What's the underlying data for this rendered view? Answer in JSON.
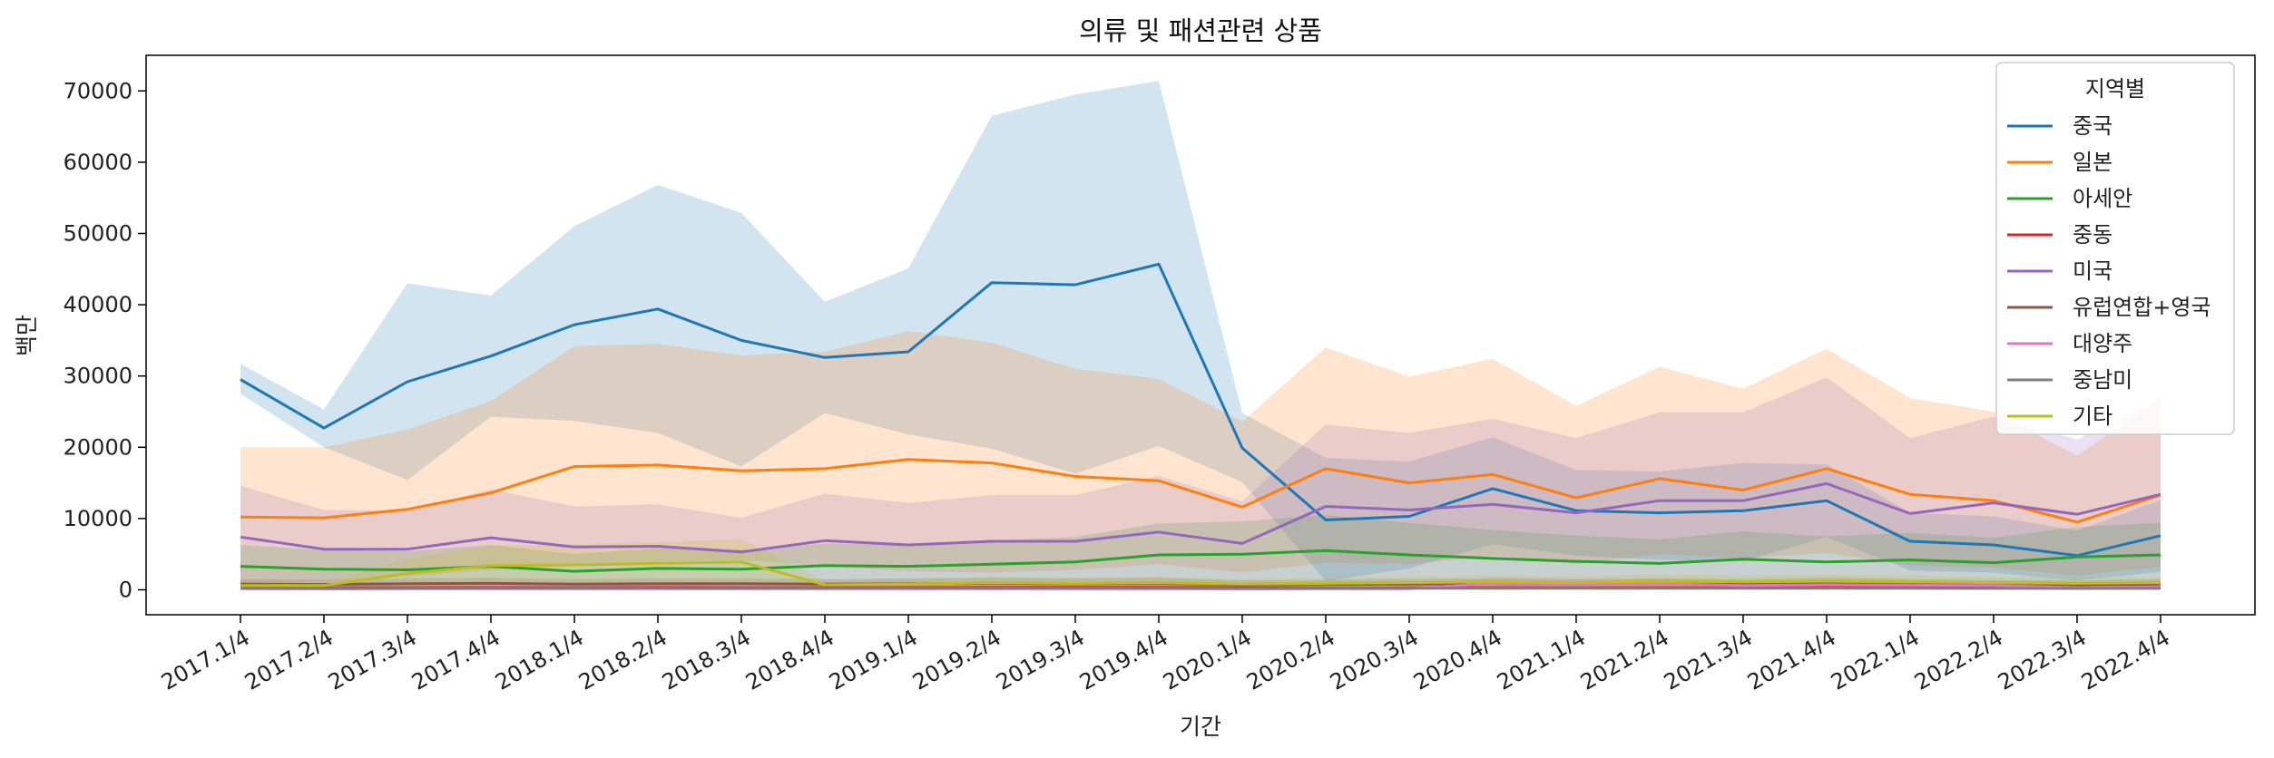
{
  "chart_data": {
    "type": "line",
    "title": "의류 및 패션관련 상품",
    "xlabel": "기간",
    "ylabel": "백만",
    "ylim": [
      -3500,
      75000
    ],
    "yticks": [
      0,
      10000,
      20000,
      30000,
      40000,
      50000,
      60000,
      70000
    ],
    "grid": false,
    "legend": {
      "title": "지역별",
      "placement": "top-right"
    },
    "categories": [
      "2017.1/4",
      "2017.2/4",
      "2017.3/4",
      "2017.4/4",
      "2018.1/4",
      "2018.2/4",
      "2018.3/4",
      "2018.4/4",
      "2019.1/4",
      "2019.2/4",
      "2019.3/4",
      "2019.4/4",
      "2020.1/4",
      "2020.2/4",
      "2020.3/4",
      "2020.4/4",
      "2021.1/4",
      "2021.2/4",
      "2021.3/4",
      "2021.4/4",
      "2022.1/4",
      "2022.2/4",
      "2022.3/4",
      "2022.4/4"
    ],
    "series": [
      {
        "name": "중국",
        "color": "#1f77b4",
        "values": [
          29500,
          22700,
          29200,
          32800,
          37200,
          39400,
          35000,
          32600,
          33400,
          43100,
          42800,
          45700,
          19900,
          9800,
          10300,
          14200,
          11100,
          10800,
          11100,
          12500,
          6800,
          6300,
          4800,
          7600
        ],
        "lower": [
          27500,
          20000,
          15400,
          24300,
          23700,
          22000,
          17300,
          24800,
          21800,
          19800,
          16300,
          20200,
          15100,
          1200,
          3000,
          6400,
          4800,
          4200,
          4000,
          7400,
          2700,
          2400,
          1300,
          2500
        ],
        "upper": [
          31700,
          25300,
          43000,
          41300,
          51000,
          56800,
          52900,
          40400,
          45100,
          66500,
          69500,
          71400,
          24800,
          18500,
          18000,
          21400,
          16800,
          16600,
          17800,
          17600,
          10800,
          10300,
          8300,
          12600
        ]
      },
      {
        "name": "일본",
        "color": "#ff7f0e",
        "values": [
          10200,
          10100,
          11300,
          13600,
          17300,
          17500,
          16700,
          17000,
          18300,
          17800,
          15900,
          15300,
          11600,
          17000,
          15000,
          16200,
          12900,
          15600,
          14000,
          17000,
          13400,
          12500,
          9500,
          13300
        ],
        "lower": [
          600,
          1200,
          1900,
          2800,
          3400,
          3900,
          4200,
          3300,
          2600,
          2400,
          2800,
          3600,
          2400,
          3800,
          3600,
          4800,
          3600,
          5000,
          4400,
          5200,
          3400,
          3100,
          2000,
          3200
        ],
        "upper": [
          20000,
          20000,
          22500,
          26500,
          34200,
          34500,
          32900,
          33400,
          36300,
          34700,
          31000,
          29600,
          23600,
          34000,
          29900,
          32400,
          25800,
          31300,
          28200,
          33800,
          26900,
          25000,
          18800,
          26900
        ]
      },
      {
        "name": "아세안",
        "color": "#2ca02c",
        "values": [
          3300,
          2900,
          2800,
          3300,
          2600,
          3000,
          2900,
          3400,
          3300,
          3600,
          3900,
          4900,
          5000,
          5500,
          4900,
          4400,
          4000,
          3700,
          4300,
          3900,
          4200,
          3800,
          4600,
          4900
        ],
        "lower": [
          300,
          250,
          200,
          300,
          200,
          250,
          250,
          300,
          300,
          350,
          400,
          450,
          450,
          500,
          450,
          400,
          400,
          350,
          400,
          350,
          400,
          350,
          450,
          450
        ],
        "upper": [
          6300,
          5600,
          5400,
          6300,
          5000,
          5800,
          5600,
          6500,
          6300,
          6900,
          7400,
          9300,
          9600,
          10500,
          9400,
          8400,
          7600,
          7100,
          8200,
          7500,
          8000,
          7300,
          8800,
          9400
        ]
      },
      {
        "name": "중동",
        "color": "#d62728",
        "values": [
          300,
          280,
          300,
          320,
          310,
          330,
          310,
          300,
          320,
          330,
          340,
          350,
          300,
          260,
          280,
          300,
          290,
          310,
          300,
          320,
          300,
          290,
          280,
          300
        ],
        "lower": [
          50,
          50,
          50,
          60,
          60,
          60,
          60,
          50,
          60,
          60,
          60,
          60,
          50,
          40,
          50,
          50,
          50,
          50,
          50,
          60,
          50,
          50,
          50,
          50
        ],
        "upper": [
          600,
          550,
          600,
          650,
          620,
          650,
          620,
          600,
          640,
          660,
          680,
          700,
          600,
          520,
          560,
          600,
          580,
          620,
          600,
          640,
          600,
          580,
          560,
          600
        ]
      },
      {
        "name": "미국",
        "color": "#9467bd",
        "values": [
          7400,
          5700,
          5700,
          7300,
          6000,
          6100,
          5300,
          6900,
          6300,
          6800,
          6800,
          8100,
          6500,
          11700,
          11200,
          12000,
          10800,
          12500,
          12500,
          14900,
          10700,
          12200,
          10600,
          13400
        ],
        "lower": [
          500,
          400,
          400,
          500,
          400,
          400,
          400,
          500,
          450,
          500,
          500,
          600,
          500,
          900,
          850,
          900,
          800,
          950,
          950,
          1100,
          800,
          900,
          800,
          1000
        ],
        "upper": [
          14600,
          11200,
          11100,
          14100,
          11700,
          12000,
          10100,
          13500,
          12200,
          13300,
          13300,
          16000,
          12400,
          23200,
          22000,
          24000,
          21300,
          24900,
          24900,
          29800,
          21300,
          24300,
          21100,
          26700
        ]
      },
      {
        "name": "유럽연합+영국",
        "color": "#8c564b",
        "values": [
          800,
          750,
          850,
          900,
          800,
          850,
          850,
          800,
          850,
          900,
          850,
          900,
          700,
          750,
          800,
          850,
          800,
          850,
          800,
          900,
          800,
          750,
          700,
          800
        ],
        "lower": [
          150,
          150,
          160,
          170,
          150,
          160,
          160,
          150,
          160,
          170,
          160,
          170,
          130,
          140,
          150,
          160,
          150,
          160,
          150,
          170,
          150,
          140,
          130,
          150
        ],
        "upper": [
          1500,
          1400,
          1600,
          1700,
          1500,
          1600,
          1600,
          1500,
          1600,
          1700,
          1600,
          1700,
          1300,
          1400,
          1500,
          1600,
          1500,
          1600,
          1500,
          1700,
          1500,
          1400,
          1300,
          1500
        ]
      },
      {
        "name": "대양주",
        "color": "#e377c2",
        "values": [
          150,
          140,
          160,
          170,
          150,
          160,
          160,
          150,
          160,
          170,
          160,
          170,
          140,
          150,
          160,
          900,
          800,
          850,
          600,
          700,
          650,
          600,
          300,
          400
        ],
        "lower": [
          30,
          30,
          30,
          30,
          30,
          30,
          30,
          30,
          30,
          30,
          30,
          30,
          30,
          30,
          30,
          150,
          150,
          150,
          100,
          120,
          110,
          100,
          50,
          70
        ],
        "upper": [
          280,
          260,
          300,
          320,
          280,
          300,
          300,
          280,
          300,
          320,
          300,
          320,
          260,
          280,
          300,
          1700,
          1500,
          1600,
          1100,
          1300,
          1200,
          1100,
          550,
          750
        ]
      },
      {
        "name": "중남미",
        "color": "#7f7f7f",
        "values": [
          200,
          190,
          200,
          210,
          200,
          210,
          200,
          200,
          210,
          220,
          210,
          220,
          190,
          200,
          210,
          220,
          210,
          220,
          210,
          220,
          210,
          200,
          190,
          200
        ],
        "lower": [
          40,
          40,
          40,
          40,
          40,
          40,
          40,
          40,
          40,
          40,
          40,
          40,
          40,
          40,
          40,
          40,
          40,
          40,
          40,
          40,
          40,
          40,
          40,
          40
        ],
        "upper": [
          380,
          360,
          380,
          400,
          380,
          400,
          380,
          380,
          400,
          420,
          400,
          420,
          360,
          380,
          400,
          420,
          400,
          420,
          400,
          420,
          400,
          380,
          360,
          380
        ]
      },
      {
        "name": "기타",
        "color": "#bcbd22",
        "values": [
          600,
          600,
          2300,
          3400,
          3500,
          3700,
          3900,
          700,
          800,
          1000,
          900,
          1000,
          800,
          900,
          1000,
          1100,
          1000,
          1200,
          1100,
          1200,
          1100,
          1000,
          900,
          1000
        ],
        "lower": [
          100,
          100,
          300,
          600,
          600,
          700,
          700,
          150,
          150,
          200,
          150,
          200,
          150,
          150,
          200,
          200,
          200,
          250,
          200,
          250,
          200,
          200,
          150,
          200
        ],
        "upper": [
          1100,
          1100,
          4300,
          6200,
          6400,
          6700,
          7100,
          1300,
          1500,
          1800,
          1700,
          1800,
          1500,
          1700,
          1800,
          2000,
          1800,
          2200,
          2000,
          2200,
          2000,
          1800,
          1700,
          1800
        ]
      }
    ]
  }
}
